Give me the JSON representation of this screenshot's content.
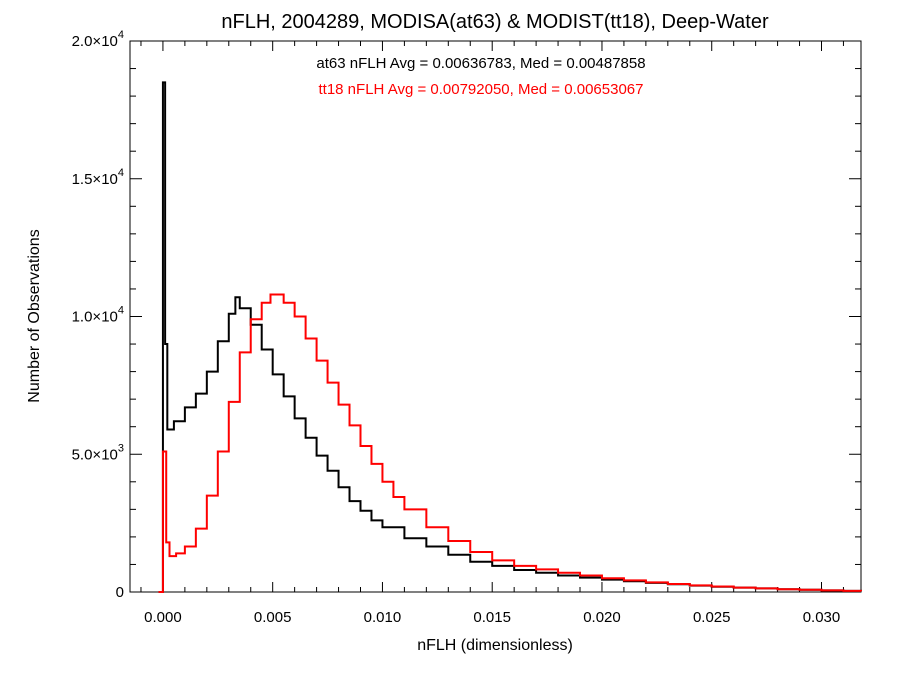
{
  "chart_data": {
    "type": "line",
    "style": "step-histogram",
    "title": "nFLH, 2004289, MODISA(at63) & MODIST(tt18), Deep-Water",
    "xlabel": "nFLH (dimensionless)",
    "ylabel": "Number of Observations",
    "xlim": [
      -0.0015,
      0.0318
    ],
    "ylim": [
      0,
      20000
    ],
    "grid": false,
    "x_ticks": [
      {
        "value": 0.0,
        "label": "0.000"
      },
      {
        "value": 0.005,
        "label": "0.005"
      },
      {
        "value": 0.01,
        "label": "0.010"
      },
      {
        "value": 0.015,
        "label": "0.015"
      },
      {
        "value": 0.02,
        "label": "0.020"
      },
      {
        "value": 0.025,
        "label": "0.025"
      },
      {
        "value": 0.03,
        "label": "0.030"
      }
    ],
    "y_ticks": [
      {
        "value": 0,
        "mantissa": "0",
        "exp": ""
      },
      {
        "value": 5000,
        "mantissa": "5.0×10",
        "exp": "3"
      },
      {
        "value": 10000,
        "mantissa": "1.0×10",
        "exp": "4"
      },
      {
        "value": 15000,
        "mantissa": "1.5×10",
        "exp": "4"
      },
      {
        "value": 20000,
        "mantissa": "2.0×10",
        "exp": "4"
      }
    ],
    "annotations": [
      {
        "text": "at63 nFLH Avg = 0.00636783, Med = 0.00487858",
        "color": "#000000"
      },
      {
        "text": "tt18 nFLH Avg = 0.00792050, Med = 0.00653067",
        "color": "#ff0000"
      }
    ],
    "series": [
      {
        "id": "at63",
        "color": "#000000",
        "x": [
          -0.0002,
          0.0,
          0.0001,
          0.0002,
          0.0005,
          0.001,
          0.0015,
          0.002,
          0.0025,
          0.003,
          0.0033,
          0.0035,
          0.004,
          0.0045,
          0.005,
          0.0055,
          0.006,
          0.0065,
          0.007,
          0.0075,
          0.008,
          0.0085,
          0.009,
          0.0095,
          0.01,
          0.011,
          0.012,
          0.013,
          0.014,
          0.015,
          0.016,
          0.017,
          0.018,
          0.019,
          0.02,
          0.021,
          0.022,
          0.023,
          0.024,
          0.025,
          0.026,
          0.027,
          0.028,
          0.029,
          0.03,
          0.031,
          0.0318
        ],
        "y": [
          0,
          18500,
          9000,
          5900,
          6200,
          6700,
          7200,
          8000,
          9100,
          10100,
          10700,
          10300,
          9700,
          8800,
          7900,
          7100,
          6300,
          5600,
          4950,
          4400,
          3800,
          3300,
          2950,
          2600,
          2350,
          1950,
          1650,
          1350,
          1100,
          950,
          800,
          700,
          600,
          520,
          450,
          390,
          330,
          280,
          230,
          190,
          160,
          130,
          100,
          80,
          60,
          40,
          30
        ]
      },
      {
        "id": "tt18",
        "color": "#ff0000",
        "x": [
          -0.0002,
          0.0,
          0.00015,
          0.0003,
          0.0006,
          0.001,
          0.0015,
          0.002,
          0.0025,
          0.003,
          0.0035,
          0.004,
          0.0045,
          0.0049,
          0.0055,
          0.006,
          0.0065,
          0.007,
          0.0075,
          0.008,
          0.0085,
          0.009,
          0.0095,
          0.01,
          0.0105,
          0.011,
          0.012,
          0.013,
          0.014,
          0.015,
          0.016,
          0.017,
          0.018,
          0.019,
          0.02,
          0.021,
          0.022,
          0.023,
          0.024,
          0.025,
          0.026,
          0.027,
          0.028,
          0.029,
          0.03,
          0.031,
          0.0318
        ],
        "y": [
          0,
          5100,
          1800,
          1300,
          1400,
          1650,
          2300,
          3500,
          5100,
          6900,
          8700,
          9900,
          10500,
          10800,
          10500,
          10000,
          9200,
          8400,
          7600,
          6800,
          6050,
          5300,
          4650,
          4000,
          3450,
          3000,
          2350,
          1850,
          1450,
          1150,
          950,
          820,
          700,
          600,
          500,
          420,
          350,
          290,
          240,
          200,
          160,
          130,
          100,
          80,
          60,
          40,
          30
        ]
      }
    ]
  }
}
